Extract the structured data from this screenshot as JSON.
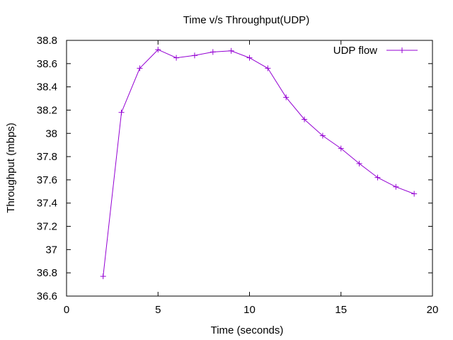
{
  "chart_data": {
    "type": "line",
    "title": "Time v/s Throughput(UDP)",
    "xlabel": "Time (seconds)",
    "ylabel": "Throughput (mbps)",
    "xlim": [
      0,
      20
    ],
    "ylim": [
      36.6,
      38.8
    ],
    "x_ticks": [
      "0",
      "5",
      "10",
      "15",
      "20"
    ],
    "y_ticks": [
      "36.6",
      "36.8",
      "37",
      "37.2",
      "37.4",
      "37.6",
      "37.8",
      "38",
      "38.2",
      "38.4",
      "38.6",
      "38.8"
    ],
    "grid": false,
    "legend_position": "top-right",
    "series": [
      {
        "name": "UDP flow",
        "color": "#9400d3",
        "marker": "plus",
        "x": [
          2,
          3,
          4,
          5,
          6,
          7,
          8,
          9,
          10,
          11,
          12,
          13,
          14,
          15,
          16,
          17,
          18,
          19
        ],
        "y": [
          36.77,
          38.18,
          38.56,
          38.72,
          38.65,
          38.67,
          38.7,
          38.71,
          38.65,
          38.56,
          38.31,
          38.12,
          37.98,
          37.87,
          37.74,
          37.62,
          37.54,
          37.48
        ]
      }
    ]
  }
}
